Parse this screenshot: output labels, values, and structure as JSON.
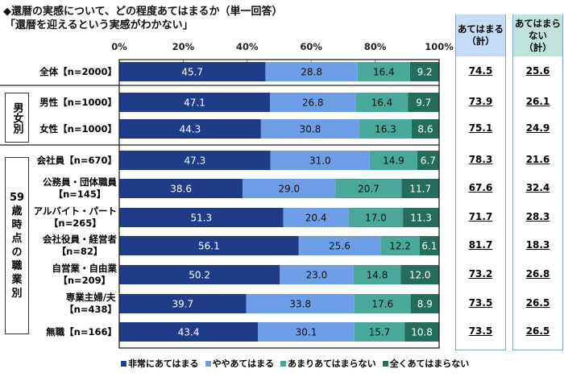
{
  "chart_data": {
    "type": "bar",
    "orientation": "horizontal",
    "stacked": true,
    "title": "◆還暦の実感について、どの程度あてはまるか（単一回答）",
    "subtitle": "「還暦を迎えるという実感がわかない」",
    "xlim": [
      0,
      100
    ],
    "x_ticks": [
      "0%",
      "20%",
      "40%",
      "60%",
      "80%",
      "100%"
    ],
    "legend_position": "bottom",
    "categories": [
      "全体【n=2000】",
      "男性【n=1000】",
      "女性【n=1000】",
      "会社員【n=670】",
      "公務員・団体職員\n【n=145】",
      "アルバイト・パート\n【n=265】",
      "会社役員・経営者\n【n=82】",
      "自営業・自由業\n【n=209】",
      "専業主婦/夫\n【n=438】",
      "無職【n=166】"
    ],
    "groups": [
      {
        "label": "男女別",
        "rows": [
          1,
          2
        ]
      },
      {
        "label": "59\n歳\n時\n点\n の\n職\n業\n別",
        "rows": [
          3,
          4,
          5,
          6,
          7,
          8,
          9
        ]
      }
    ],
    "series": [
      {
        "name": "非常にあてはまる",
        "color": "#1f3c88",
        "values": [
          45.7,
          47.1,
          44.3,
          47.3,
          38.6,
          51.3,
          56.1,
          50.2,
          39.7,
          43.4
        ]
      },
      {
        "name": "ややあてはまる",
        "color": "#6f9ee8",
        "values": [
          28.8,
          26.8,
          30.8,
          31.0,
          29.0,
          20.4,
          25.6,
          23.0,
          33.8,
          30.1
        ]
      },
      {
        "name": "あまりあてはまらない",
        "color": "#4aa89b",
        "values": [
          16.4,
          16.4,
          16.3,
          14.9,
          20.7,
          17.0,
          12.2,
          14.8,
          17.6,
          15.7
        ]
      },
      {
        "name": "全くあてはまらない",
        "color": "#246d5d",
        "values": [
          9.2,
          9.7,
          8.6,
          6.7,
          11.7,
          11.3,
          6.1,
          12.0,
          8.9,
          10.8
        ]
      }
    ],
    "summary": [
      {
        "header": "あてはまる\n（計）",
        "color": "#c6dbf5",
        "values": [
          "74.5",
          "73.9",
          "75.1",
          "78.3",
          "67.6",
          "71.7",
          "81.7",
          "73.2",
          "73.5",
          "73.5"
        ]
      },
      {
        "header": "あてはまら\nない\n（計）",
        "color": "#bfe2dc",
        "values": [
          "25.6",
          "26.1",
          "24.9",
          "21.6",
          "32.4",
          "28.3",
          "18.3",
          "26.8",
          "26.5",
          "26.5"
        ]
      }
    ]
  }
}
